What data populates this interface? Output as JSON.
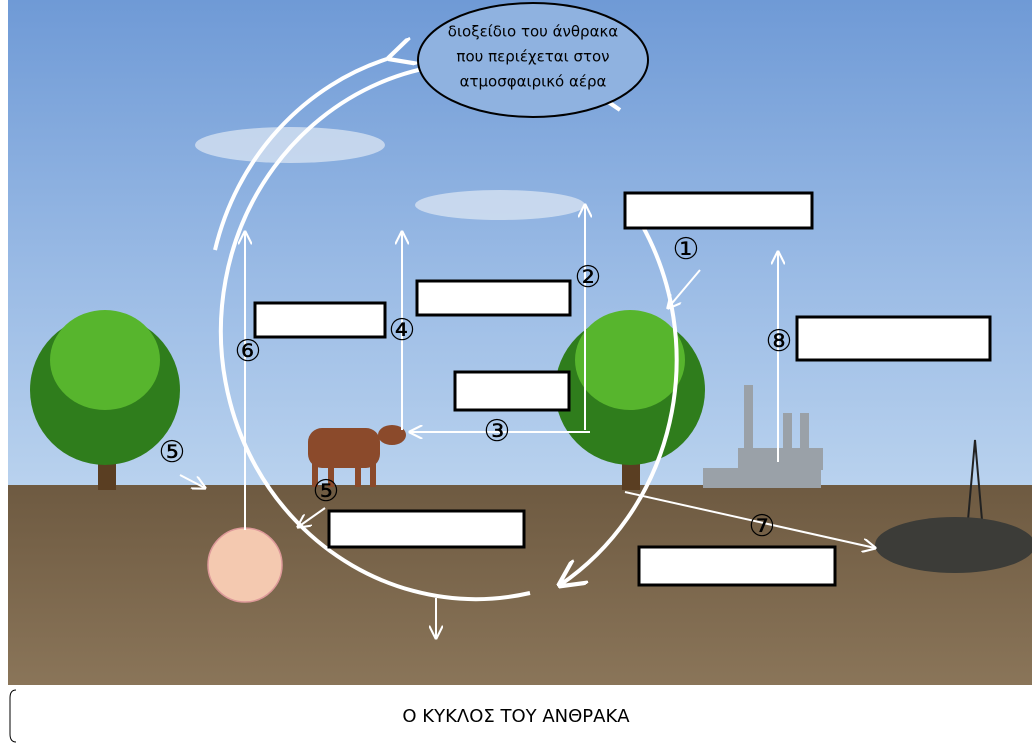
{
  "bubble": {
    "lines": [
      "διοξείδιο του άνθρακα",
      "που περιέχεται στον",
      "ατμοσφαιρικό αέρα"
    ]
  },
  "markers": [
    "①",
    "②",
    "③",
    "④",
    "⑤",
    "⑤",
    "⑥",
    "⑦",
    "⑧"
  ],
  "caption": "Ο ΚΥΚΛΟΣ ΤΟΥ ΑΝΘΡΑΚΑ"
}
